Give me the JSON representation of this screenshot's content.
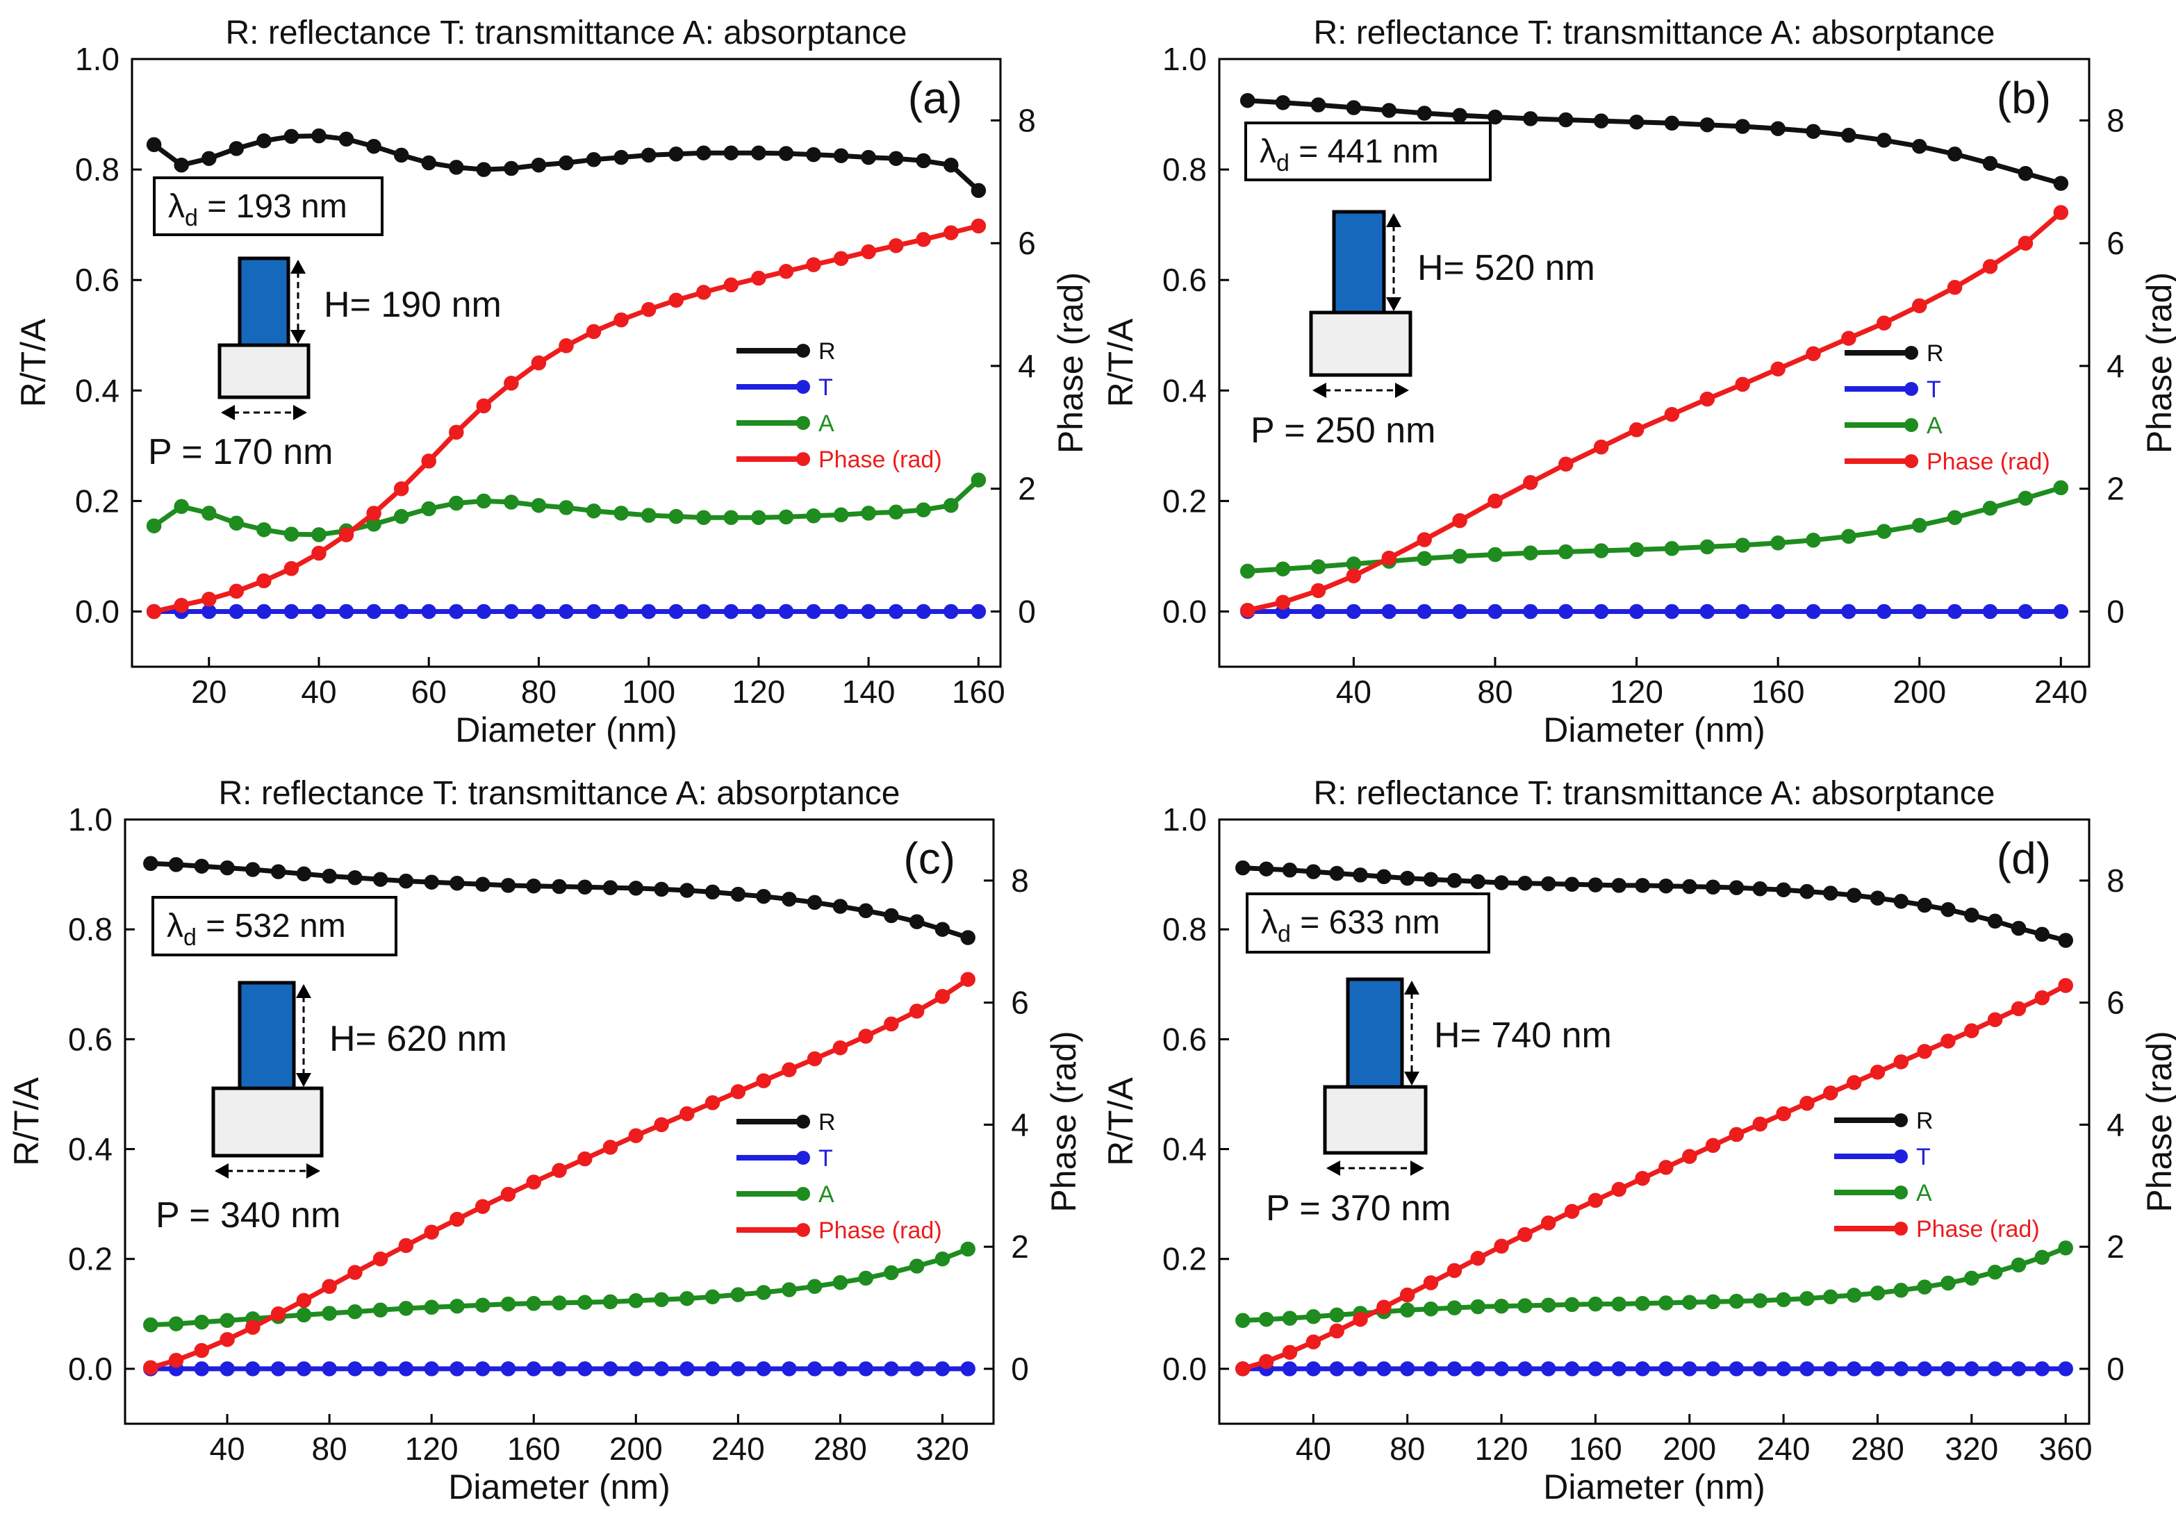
{
  "figure_title": "R: reflectance T: transmittance A: absorptance",
  "legend_labels": {
    "R": "R",
    "T": "T",
    "A": "A",
    "Phase": "Phase (rad)"
  },
  "colors": {
    "R": "#111111",
    "T": "#1f1fe0",
    "A": "#1e8c1e",
    "Phase": "#ee1c1c",
    "pillar": "#1668bd",
    "substrate": "#efefef"
  },
  "chart_data": [
    {
      "panel": "(a)",
      "type": "line",
      "title": "R: reflectance T: transmittance A: absorptance",
      "xlabel": "Diameter (nm)",
      "ylabel": "R/T/A",
      "y2label": "Phase (rad)",
      "xlim": [
        6,
        164
      ],
      "xticks": [
        20,
        40,
        60,
        80,
        100,
        120,
        140,
        160
      ],
      "ylim": [
        -0.1,
        1.0
      ],
      "yticks": [
        0.0,
        0.2,
        0.4,
        0.6,
        0.8,
        1.0
      ],
      "y2lim": [
        -0.9,
        9.0
      ],
      "y2ticks": [
        0,
        2,
        4,
        6,
        8
      ],
      "lambda_label": "λ",
      "lambda_sub": "d",
      "lambda_value": " = 193 nm",
      "height_label": "H= 190 nm",
      "period_label": "P = 170 nm",
      "x": [
        10,
        15,
        20,
        25,
        30,
        35,
        40,
        45,
        50,
        55,
        60,
        65,
        70,
        75,
        80,
        85,
        90,
        95,
        100,
        105,
        110,
        115,
        120,
        125,
        130,
        135,
        140,
        145,
        150,
        155,
        160
      ],
      "series": [
        {
          "name": "R",
          "axis": "left",
          "values": [
            0.845,
            0.808,
            0.82,
            0.838,
            0.852,
            0.86,
            0.861,
            0.855,
            0.842,
            0.826,
            0.812,
            0.804,
            0.8,
            0.802,
            0.808,
            0.812,
            0.818,
            0.822,
            0.826,
            0.828,
            0.83,
            0.83,
            0.83,
            0.829,
            0.827,
            0.825,
            0.822,
            0.82,
            0.816,
            0.808,
            0.762
          ]
        },
        {
          "name": "T",
          "axis": "left",
          "values": [
            0.0,
            0.0,
            0.0,
            0.0,
            0.0,
            0.0,
            0.0,
            0.0,
            0.0,
            0.0,
            0.0,
            0.0,
            0.0,
            0.0,
            0.0,
            0.0,
            0.0,
            0.0,
            0.0,
            0.0,
            0.0,
            0.0,
            0.0,
            0.0,
            0.0,
            0.0,
            0.0,
            0.0,
            0.0,
            0.0,
            0.0
          ]
        },
        {
          "name": "A",
          "axis": "left",
          "values": [
            0.155,
            0.19,
            0.178,
            0.16,
            0.148,
            0.14,
            0.139,
            0.146,
            0.158,
            0.172,
            0.186,
            0.196,
            0.2,
            0.198,
            0.192,
            0.188,
            0.182,
            0.178,
            0.174,
            0.172,
            0.17,
            0.17,
            0.17,
            0.171,
            0.173,
            0.175,
            0.178,
            0.18,
            0.184,
            0.192,
            0.238
          ]
        },
        {
          "name": "Phase (rad)",
          "axis": "right",
          "values": [
            0.0,
            0.1,
            0.2,
            0.33,
            0.5,
            0.7,
            0.95,
            1.25,
            1.6,
            2.0,
            2.45,
            2.92,
            3.35,
            3.72,
            4.05,
            4.33,
            4.56,
            4.75,
            4.92,
            5.07,
            5.2,
            5.32,
            5.43,
            5.54,
            5.65,
            5.75,
            5.86,
            5.96,
            6.06,
            6.17,
            6.28
          ]
        }
      ]
    },
    {
      "panel": "(b)",
      "type": "line",
      "title": "R: reflectance T: transmittance A: absorptance",
      "xlabel": "Diameter (nm)",
      "ylabel": "R/T/A",
      "y2label": "Phase (rad)",
      "xlim": [
        2,
        248
      ],
      "xticks": [
        40,
        80,
        120,
        160,
        200,
        240
      ],
      "ylim": [
        -0.1,
        1.0
      ],
      "yticks": [
        0.0,
        0.2,
        0.4,
        0.6,
        0.8,
        1.0
      ],
      "y2lim": [
        -0.9,
        9.0
      ],
      "y2ticks": [
        0,
        2,
        4,
        6,
        8
      ],
      "lambda_label": "λ",
      "lambda_sub": "d",
      "lambda_value": " = 441 nm",
      "height_label": "H= 520 nm",
      "period_label": "P = 250 nm",
      "x": [
        10,
        20,
        30,
        40,
        50,
        60,
        70,
        80,
        90,
        100,
        110,
        120,
        130,
        140,
        150,
        160,
        170,
        180,
        190,
        200,
        210,
        220,
        230,
        240
      ],
      "series": [
        {
          "name": "R",
          "axis": "left",
          "values": [
            0.925,
            0.921,
            0.917,
            0.912,
            0.907,
            0.902,
            0.898,
            0.895,
            0.892,
            0.89,
            0.888,
            0.886,
            0.884,
            0.881,
            0.878,
            0.874,
            0.869,
            0.862,
            0.853,
            0.842,
            0.828,
            0.811,
            0.793,
            0.775
          ]
        },
        {
          "name": "T",
          "axis": "left",
          "values": [
            0.0,
            0.0,
            0.0,
            0.0,
            0.0,
            0.0,
            0.0,
            0.0,
            0.0,
            0.0,
            0.0,
            0.0,
            0.0,
            0.0,
            0.0,
            0.0,
            0.0,
            0.0,
            0.0,
            0.0,
            0.0,
            0.0,
            0.0,
            0.0
          ]
        },
        {
          "name": "A",
          "axis": "left",
          "values": [
            0.073,
            0.077,
            0.081,
            0.086,
            0.091,
            0.096,
            0.1,
            0.103,
            0.106,
            0.108,
            0.11,
            0.112,
            0.114,
            0.117,
            0.12,
            0.124,
            0.129,
            0.136,
            0.145,
            0.156,
            0.17,
            0.187,
            0.205,
            0.224
          ]
        },
        {
          "name": "Phase (rad)",
          "axis": "right",
          "values": [
            0.02,
            0.15,
            0.34,
            0.58,
            0.87,
            1.17,
            1.48,
            1.8,
            2.1,
            2.4,
            2.68,
            2.96,
            3.21,
            3.46,
            3.7,
            3.95,
            4.2,
            4.45,
            4.7,
            4.98,
            5.28,
            5.62,
            6.0,
            6.5
          ]
        }
      ]
    },
    {
      "panel": "(c)",
      "type": "line",
      "title": "R: reflectance T: transmittance A: absorptance",
      "xlabel": "Diameter (nm)",
      "ylabel": "R/T/A",
      "y2label": "Phase (rad)",
      "xlim": [
        0,
        340
      ],
      "xticks": [
        40,
        80,
        120,
        160,
        200,
        240,
        280,
        320
      ],
      "ylim": [
        -0.1,
        1.0
      ],
      "yticks": [
        0.0,
        0.2,
        0.4,
        0.6,
        0.8,
        1.0
      ],
      "y2lim": [
        -0.9,
        9.0
      ],
      "y2ticks": [
        0,
        2,
        4,
        6,
        8
      ],
      "lambda_label": "λ",
      "lambda_sub": "d",
      "lambda_value": " = 532 nm",
      "height_label": "H= 620 nm",
      "period_label": "P = 340 nm",
      "x": [
        10,
        20,
        30,
        40,
        50,
        60,
        70,
        80,
        90,
        100,
        110,
        120,
        130,
        140,
        150,
        160,
        170,
        180,
        190,
        200,
        210,
        220,
        230,
        240,
        250,
        260,
        270,
        280,
        290,
        300,
        310,
        320,
        330
      ],
      "series": [
        {
          "name": "R",
          "axis": "left",
          "values": [
            0.92,
            0.918,
            0.915,
            0.912,
            0.909,
            0.905,
            0.901,
            0.897,
            0.894,
            0.891,
            0.888,
            0.886,
            0.884,
            0.882,
            0.88,
            0.879,
            0.878,
            0.877,
            0.876,
            0.875,
            0.873,
            0.871,
            0.868,
            0.864,
            0.86,
            0.855,
            0.849,
            0.842,
            0.834,
            0.825,
            0.814,
            0.8,
            0.785
          ]
        },
        {
          "name": "T",
          "axis": "left",
          "values": [
            0.0,
            0.0,
            0.0,
            0.0,
            0.0,
            0.0,
            0.0,
            0.0,
            0.0,
            0.0,
            0.0,
            0.0,
            0.0,
            0.0,
            0.0,
            0.0,
            0.0,
            0.0,
            0.0,
            0.0,
            0.0,
            0.0,
            0.0,
            0.0,
            0.0,
            0.0,
            0.0,
            0.0,
            0.0,
            0.0,
            0.0,
            0.0,
            0.0
          ]
        },
        {
          "name": "A",
          "axis": "left",
          "values": [
            0.08,
            0.082,
            0.085,
            0.088,
            0.091,
            0.095,
            0.098,
            0.101,
            0.104,
            0.107,
            0.11,
            0.112,
            0.114,
            0.116,
            0.118,
            0.119,
            0.12,
            0.121,
            0.122,
            0.124,
            0.126,
            0.128,
            0.131,
            0.135,
            0.139,
            0.144,
            0.15,
            0.157,
            0.165,
            0.175,
            0.187,
            0.2,
            0.218
          ]
        },
        {
          "name": "Phase (rad)",
          "axis": "right",
          "values": [
            0.02,
            0.14,
            0.3,
            0.48,
            0.68,
            0.9,
            1.12,
            1.35,
            1.58,
            1.8,
            2.02,
            2.24,
            2.45,
            2.66,
            2.86,
            3.06,
            3.25,
            3.44,
            3.63,
            3.82,
            4.0,
            4.18,
            4.36,
            4.54,
            4.72,
            4.9,
            5.08,
            5.26,
            5.45,
            5.65,
            5.86,
            6.1,
            6.38
          ]
        }
      ]
    },
    {
      "panel": "(d)",
      "type": "line",
      "title": "R: reflectance T: transmittance A: absorptance",
      "xlabel": "Diameter (nm)",
      "ylabel": "R/T/A",
      "y2label": "Phase (rad)",
      "xlim": [
        0,
        370
      ],
      "xticks": [
        40,
        80,
        120,
        160,
        200,
        240,
        280,
        320,
        360
      ],
      "ylim": [
        -0.1,
        1.0
      ],
      "yticks": [
        0.0,
        0.2,
        0.4,
        0.6,
        0.8,
        1.0
      ],
      "y2lim": [
        -0.9,
        9.0
      ],
      "y2ticks": [
        0,
        2,
        4,
        6,
        8
      ],
      "lambda_label": "λ",
      "lambda_sub": "d",
      "lambda_value": " = 633 nm",
      "height_label": "H= 740 nm",
      "period_label": "P = 370 nm",
      "x": [
        10,
        20,
        30,
        40,
        50,
        60,
        70,
        80,
        90,
        100,
        110,
        120,
        130,
        140,
        150,
        160,
        170,
        180,
        190,
        200,
        210,
        220,
        230,
        240,
        250,
        260,
        270,
        280,
        290,
        300,
        310,
        320,
        330,
        340,
        350,
        360
      ],
      "series": [
        {
          "name": "R",
          "axis": "left",
          "values": [
            0.912,
            0.91,
            0.908,
            0.905,
            0.902,
            0.899,
            0.896,
            0.893,
            0.891,
            0.889,
            0.887,
            0.885,
            0.884,
            0.883,
            0.882,
            0.881,
            0.88,
            0.88,
            0.879,
            0.878,
            0.877,
            0.876,
            0.874,
            0.872,
            0.869,
            0.866,
            0.862,
            0.857,
            0.851,
            0.844,
            0.836,
            0.826,
            0.815,
            0.802,
            0.791,
            0.78
          ]
        },
        {
          "name": "T",
          "axis": "left",
          "values": [
            0.0,
            0.0,
            0.0,
            0.0,
            0.0,
            0.0,
            0.0,
            0.0,
            0.0,
            0.0,
            0.0,
            0.0,
            0.0,
            0.0,
            0.0,
            0.0,
            0.0,
            0.0,
            0.0,
            0.0,
            0.0,
            0.0,
            0.0,
            0.0,
            0.0,
            0.0,
            0.0,
            0.0,
            0.0,
            0.0,
            0.0,
            0.0,
            0.0,
            0.0,
            0.0,
            0.0
          ]
        },
        {
          "name": "A",
          "axis": "left",
          "values": [
            0.088,
            0.09,
            0.092,
            0.095,
            0.098,
            0.101,
            0.104,
            0.107,
            0.109,
            0.111,
            0.113,
            0.114,
            0.115,
            0.116,
            0.117,
            0.118,
            0.118,
            0.119,
            0.12,
            0.121,
            0.122,
            0.123,
            0.124,
            0.126,
            0.128,
            0.131,
            0.134,
            0.138,
            0.143,
            0.149,
            0.156,
            0.165,
            0.176,
            0.189,
            0.203,
            0.22
          ]
        },
        {
          "name": "Phase (rad)",
          "axis": "right",
          "values": [
            0.0,
            0.12,
            0.27,
            0.44,
            0.62,
            0.81,
            1.01,
            1.21,
            1.41,
            1.61,
            1.81,
            2.01,
            2.2,
            2.39,
            2.58,
            2.76,
            2.94,
            3.12,
            3.3,
            3.48,
            3.66,
            3.84,
            4.01,
            4.18,
            4.35,
            4.52,
            4.69,
            4.86,
            5.03,
            5.2,
            5.37,
            5.54,
            5.72,
            5.9,
            6.08,
            6.28
          ]
        }
      ]
    }
  ]
}
